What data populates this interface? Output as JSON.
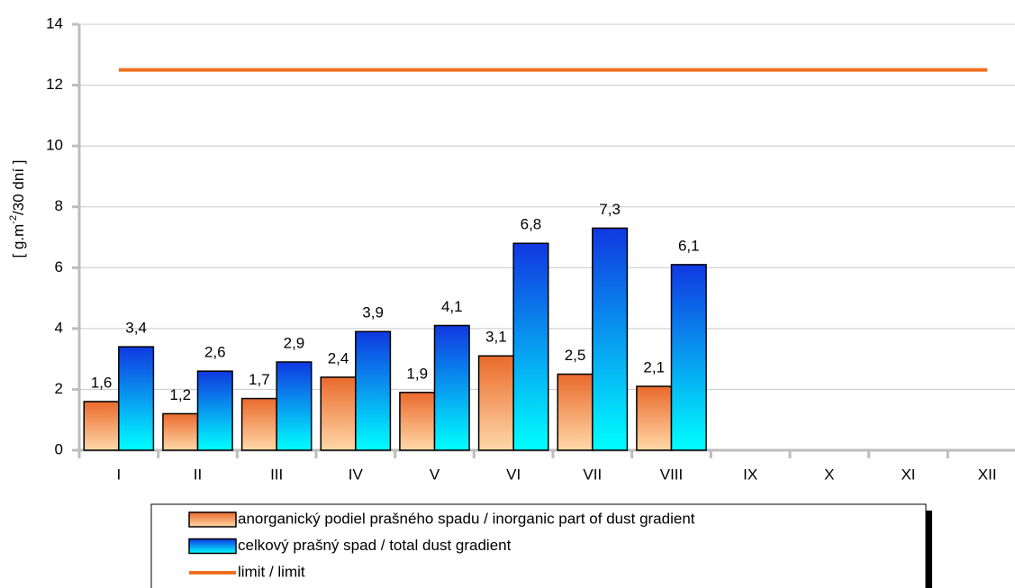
{
  "chart_data": {
    "type": "bar",
    "ylabel": [
      "[ g.m",
      "-2",
      "/30 dní ]"
    ],
    "categories": [
      "I",
      "II",
      "III",
      "IV",
      "V",
      "VI",
      "VII",
      "VIII",
      "IX",
      "X",
      "XI",
      "XII"
    ],
    "series": [
      {
        "name": "anorganický podiel prašného spadu / inorganic part of dust gradient",
        "color": "#ea6a2c",
        "values": [
          1.6,
          1.2,
          1.7,
          2.4,
          1.9,
          3.1,
          2.5,
          2.1,
          null,
          null,
          null,
          null
        ],
        "value_labels": [
          "1,6",
          "1,2",
          "1,7",
          "2,4",
          "1,9",
          "3,1",
          "2,5",
          "2,1",
          null,
          null,
          null,
          null
        ]
      },
      {
        "name": "celkový prašný spad / total dust gradient",
        "color": "#1038e0",
        "values": [
          3.4,
          2.6,
          2.9,
          3.9,
          4.1,
          6.8,
          7.3,
          6.1,
          null,
          null,
          null,
          null
        ],
        "value_labels": [
          "3,4",
          "2,6",
          "2,9",
          "3,9",
          "4,1",
          "6,8",
          "7,3",
          "6,1",
          null,
          null,
          null,
          null
        ]
      },
      {
        "name": "limit / limit",
        "type": "line",
        "color": "#f07020",
        "values": [
          12.5,
          12.5,
          12.5,
          12.5,
          12.5,
          12.5,
          12.5,
          12.5,
          12.5,
          12.5,
          12.5,
          12.5
        ]
      }
    ],
    "ylim": [
      0,
      14
    ],
    "yticks": [
      0,
      2,
      4,
      6,
      8,
      10,
      12,
      14
    ],
    "grid": true
  }
}
